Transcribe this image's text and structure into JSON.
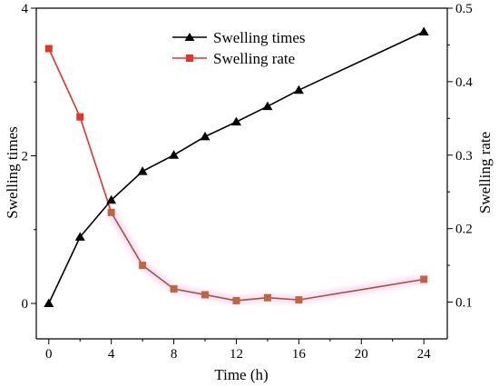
{
  "chart_data": {
    "type": "line",
    "x": [
      0,
      2,
      4,
      6,
      8,
      10,
      12,
      14,
      16,
      24
    ],
    "xlabel": "Time (h)",
    "xlim": [
      -0.8,
      25.5
    ],
    "xticks": [
      0,
      4,
      8,
      12,
      16,
      20,
      24
    ],
    "xticks_minor": [
      2,
      6,
      10,
      14,
      18,
      22
    ],
    "y_left": {
      "label": "Swelling times",
      "lim": [
        -0.48,
        4
      ],
      "ticks": [
        0,
        2,
        4
      ],
      "ticks_minor": [
        1,
        3
      ]
    },
    "y_right": {
      "label": "Swelling rate",
      "lim": [
        0.05,
        0.5
      ],
      "ticks": [
        0.1,
        0.2,
        0.3,
        0.4,
        0.5
      ],
      "ticks_minor": [
        0.15,
        0.25,
        0.35,
        0.45
      ]
    },
    "legend_position": "top-center",
    "series": [
      {
        "name": "Swelling times",
        "axis": "left",
        "marker": "triangle",
        "color": "#000000",
        "values": [
          0.0,
          0.9,
          1.4,
          1.79,
          2.01,
          2.26,
          2.46,
          2.67,
          2.89,
          3.68
        ]
      },
      {
        "name": "Swelling rate",
        "axis": "right",
        "marker": "square",
        "color": "#e8322a",
        "segment_colors": {
          "early": "#e8322a",
          "late": "#a0563a"
        },
        "values": [
          0.445,
          0.352,
          0.222,
          0.15,
          0.118,
          0.11,
          0.102,
          0.106,
          0.103,
          0.131
        ]
      }
    ]
  }
}
